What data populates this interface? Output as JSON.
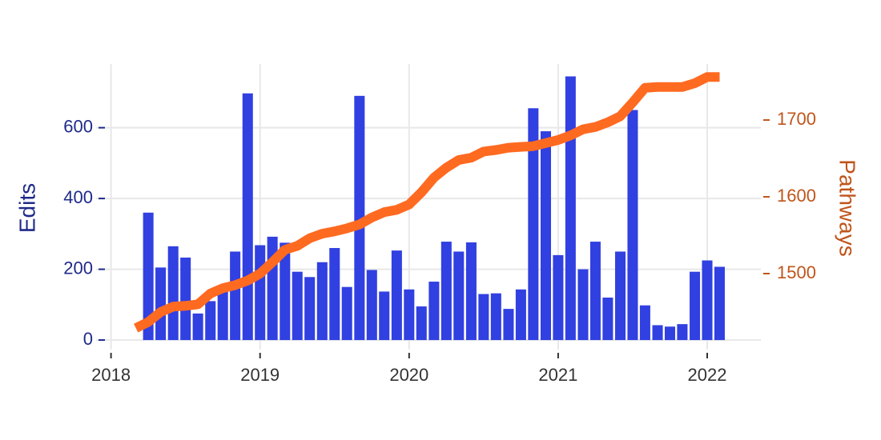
{
  "chart_data": {
    "type": "bar",
    "xlim": [
      2017.9,
      2022.36
    ],
    "xticks": [
      2018,
      2019,
      2020,
      2021,
      2022
    ],
    "ylim": [
      -27,
      780
    ],
    "yticks": [
      0,
      200,
      400,
      600
    ],
    "y2lim": [
      1401,
      1773
    ],
    "y2ticks": [
      1500,
      1600,
      1700
    ],
    "ylabel": "Edits",
    "y2label": "Pathways",
    "grid": true,
    "series": [
      {
        "type": "bar",
        "color": "#3140e0",
        "x": [
          2018.25,
          2018.333,
          2018.417,
          2018.5,
          2018.583,
          2018.667,
          2018.75,
          2018.833,
          2018.917,
          2019,
          2019.083,
          2019.167,
          2019.25,
          2019.333,
          2019.417,
          2019.5,
          2019.583,
          2019.667,
          2019.75,
          2019.833,
          2019.917,
          2020,
          2020.083,
          2020.167,
          2020.25,
          2020.333,
          2020.417,
          2020.5,
          2020.583,
          2020.667,
          2020.75,
          2020.833,
          2020.917,
          2021,
          2021.083,
          2021.167,
          2021.25,
          2021.333,
          2021.417,
          2021.5,
          2021.583,
          2021.667,
          2021.75,
          2021.833,
          2021.917,
          2022,
          2022.083
        ],
        "values": [
          360,
          205,
          265,
          233,
          75,
          110,
          150,
          250,
          697,
          268,
          292,
          275,
          193,
          178,
          220,
          260,
          150,
          690,
          198,
          137,
          253,
          143,
          95,
          165,
          278,
          250,
          276,
          130,
          132,
          88,
          143,
          655,
          590,
          240,
          745,
          200,
          278,
          120,
          250,
          650,
          98,
          42,
          38,
          45,
          193,
          225,
          207
        ]
      },
      {
        "type": "line",
        "axis": "y2",
        "color": "#ff6a21",
        "x": [
          2018.167,
          2018.25,
          2018.333,
          2018.417,
          2018.5,
          2018.583,
          2018.667,
          2018.75,
          2018.833,
          2018.917,
          2019,
          2019.083,
          2019.167,
          2019.25,
          2019.333,
          2019.417,
          2019.5,
          2019.583,
          2019.667,
          2019.75,
          2019.833,
          2019.917,
          2020,
          2020.083,
          2020.167,
          2020.25,
          2020.333,
          2020.417,
          2020.5,
          2020.583,
          2020.667,
          2020.75,
          2020.833,
          2020.917,
          2021,
          2021.083,
          2021.167,
          2021.25,
          2021.333,
          2021.417,
          2021.5,
          2021.583,
          2021.667,
          2021.75,
          2021.833,
          2021.917,
          2022,
          2022.083
        ],
        "values": [
          1429,
          1437,
          1450,
          1457,
          1458,
          1460,
          1474,
          1481,
          1485,
          1491,
          1500,
          1515,
          1531,
          1536,
          1546,
          1552,
          1555,
          1559,
          1564,
          1573,
          1580,
          1583,
          1590,
          1606,
          1625,
          1638,
          1648,
          1651,
          1659,
          1661,
          1664,
          1665,
          1666,
          1670,
          1674,
          1680,
          1688,
          1691,
          1697,
          1705,
          1723,
          1742,
          1743,
          1743,
          1743,
          1748,
          1756,
          1756
        ]
      }
    ]
  }
}
